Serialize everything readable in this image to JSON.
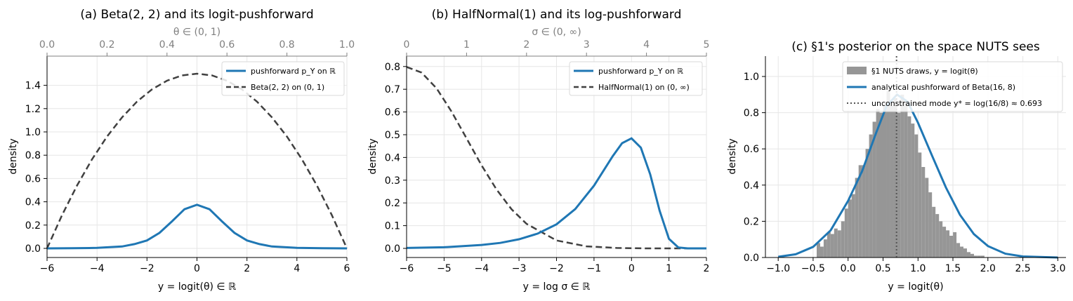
{
  "chart_data": [
    {
      "type": "line",
      "title": "(a) Beta(2, 2) and its logit-pushforward",
      "xlabel": "y = logit(θ) ∈ ℝ",
      "ylabel": "density",
      "xlim": [
        -6,
        6
      ],
      "ylim": [
        -0.08,
        1.58
      ],
      "xticks": [
        "−6",
        "−4",
        "−2",
        "0",
        "2",
        "4",
        "6"
      ],
      "yticks": [
        "0.0",
        "0.2",
        "0.4",
        "0.6",
        "0.8",
        "1.0",
        "1.2",
        "1.4"
      ],
      "grid": true,
      "top_axis": {
        "label": "θ ∈ (0, 1)",
        "ticks": [
          "0.0",
          "0.2",
          "0.4",
          "0.6",
          "0.8",
          "1.0"
        ]
      },
      "legend": {
        "position": "top-right",
        "entries": [
          "pushforward p_Y on ℝ",
          "Beta(2, 2) on (0, 1)"
        ]
      },
      "series": [
        {
          "name": "pushforward p_Y on ℝ",
          "color": "#1f77b4",
          "style": "solid",
          "x": [
            -6,
            -5,
            -4,
            -3,
            -2.5,
            -2,
            -1.5,
            -1,
            -0.5,
            0,
            0.5,
            1,
            1.5,
            2,
            2.5,
            3,
            4,
            5,
            6
          ],
          "y": [
            0.0,
            0.001,
            0.004,
            0.016,
            0.037,
            0.068,
            0.133,
            0.232,
            0.336,
            0.375,
            0.336,
            0.232,
            0.133,
            0.068,
            0.037,
            0.016,
            0.004,
            0.001,
            0.0
          ]
        },
        {
          "name": "Beta(2, 2) on (0, 1)",
          "color": "#404040",
          "style": "dashed",
          "x": [
            0.0,
            0.05,
            0.1,
            0.15,
            0.2,
            0.25,
            0.3,
            0.35,
            0.4,
            0.45,
            0.5,
            0.55,
            0.6,
            0.65,
            0.7,
            0.75,
            0.8,
            0.85,
            0.9,
            0.95,
            1.0
          ],
          "y": [
            0.0,
            0.285,
            0.54,
            0.765,
            0.96,
            1.125,
            1.26,
            1.365,
            1.44,
            1.485,
            1.5,
            1.485,
            1.44,
            1.365,
            1.26,
            1.125,
            0.96,
            0.765,
            0.54,
            0.285,
            0.0
          ]
        }
      ]
    },
    {
      "type": "line",
      "title": "(b) HalfNormal(1) and its log-pushforward",
      "xlabel": "y = log σ ∈ ℝ",
      "ylabel": "density",
      "xlim": [
        -6,
        2
      ],
      "ylim": [
        -0.04,
        0.84
      ],
      "xticks": [
        "−6",
        "−5",
        "−4",
        "−3",
        "−2",
        "−1",
        "0",
        "1",
        "2"
      ],
      "yticks": [
        "0.0",
        "0.1",
        "0.2",
        "0.3",
        "0.4",
        "0.5",
        "0.6",
        "0.7",
        "0.8"
      ],
      "grid": true,
      "top_axis": {
        "label": "σ ∈ (0, ∞)",
        "ticks": [
          "0",
          "1",
          "2",
          "3",
          "4",
          "5"
        ]
      },
      "legend": {
        "position": "top-right",
        "entries": [
          "pushforward p_Y on ℝ",
          "HalfNormal(1) on (0, ∞)"
        ]
      },
      "series": [
        {
          "name": "pushforward p_Y on ℝ",
          "color": "#1f77b4",
          "style": "solid",
          "x": [
            -6,
            -5,
            -4,
            -3.5,
            -3,
            -2.5,
            -2,
            -1.5,
            -1,
            -0.5,
            -0.25,
            0,
            0.25,
            0.5,
            0.75,
            1,
            1.25,
            1.5,
            2
          ],
          "y": [
            0.002,
            0.005,
            0.015,
            0.024,
            0.04,
            0.065,
            0.106,
            0.173,
            0.276,
            0.406,
            0.463,
            0.484,
            0.443,
            0.326,
            0.166,
            0.042,
            0.004,
            0.0,
            0.0
          ]
        },
        {
          "name": "HalfNormal(1) on (0, ∞)",
          "color": "#404040",
          "style": "dashed",
          "x": [
            0,
            0.25,
            0.5,
            0.75,
            1.0,
            1.25,
            1.5,
            1.75,
            2.0,
            2.5,
            3.0,
            3.5,
            4.0,
            4.5,
            5.0
          ],
          "y": [
            0.798,
            0.773,
            0.704,
            0.602,
            0.484,
            0.365,
            0.259,
            0.172,
            0.108,
            0.035,
            0.009,
            0.002,
            0.0,
            0.0,
            0.0
          ]
        }
      ]
    },
    {
      "type": "bar",
      "title": "(c) §1's posterior on the space NUTS sees",
      "xlabel": "y = logit(θ)",
      "ylabel": "density",
      "xlim": [
        -1.15,
        3.15
      ],
      "ylim": [
        0,
        1.11
      ],
      "xticks": [
        "−1.0",
        "−0.5",
        "0.0",
        "0.5",
        "1.0",
        "1.5",
        "2.0",
        "2.5",
        "3.0"
      ],
      "yticks": [
        "0.0",
        "0.2",
        "0.4",
        "0.6",
        "0.8",
        "1.0"
      ],
      "grid": true,
      "legend": {
        "position": "top-right",
        "entries": [
          "§1 NUTS draws,  y = logit(θ)",
          "analytical pushforward of Beta(16, 8)",
          "unconstrained mode y* = log(16/8) ≈ 0.693"
        ]
      },
      "histogram": {
        "name": "§1 NUTS draws,  y = logit(θ)",
        "color": "#969696",
        "bin_start": -0.45,
        "bin_width": 0.05,
        "values": [
          0.08,
          0.06,
          0.1,
          0.14,
          0.13,
          0.16,
          0.15,
          0.2,
          0.27,
          0.32,
          0.35,
          0.44,
          0.51,
          0.51,
          0.6,
          0.68,
          0.75,
          0.82,
          0.8,
          0.86,
          0.92,
          0.84,
          0.88,
          0.8,
          0.9,
          0.86,
          0.78,
          0.74,
          0.68,
          0.58,
          0.5,
          0.44,
          0.36,
          0.28,
          0.24,
          0.2,
          0.17,
          0.15,
          0.12,
          0.14,
          0.08,
          0.06,
          0.05,
          0.03,
          0.02,
          0.01,
          0.01,
          0.01
        ]
      },
      "series": [
        {
          "name": "analytical pushforward of Beta(16, 8)",
          "color": "#1f77b4",
          "style": "solid",
          "x": [
            -1.0,
            -0.75,
            -0.5,
            -0.25,
            0.0,
            0.2,
            0.4,
            0.55,
            0.7,
            0.85,
            1.0,
            1.2,
            1.4,
            1.6,
            1.8,
            2.0,
            2.25,
            2.5,
            3.0
          ],
          "y": [
            0.004,
            0.018,
            0.059,
            0.15,
            0.313,
            0.477,
            0.688,
            0.837,
            0.9,
            0.861,
            0.744,
            0.563,
            0.386,
            0.236,
            0.129,
            0.063,
            0.021,
            0.006,
            0.0
          ]
        },
        {
          "name": "unconstrained mode y* = log(16/8) ≈ 0.693",
          "color": "#555555",
          "style": "dotted",
          "vline_x": 0.693
        }
      ]
    }
  ]
}
